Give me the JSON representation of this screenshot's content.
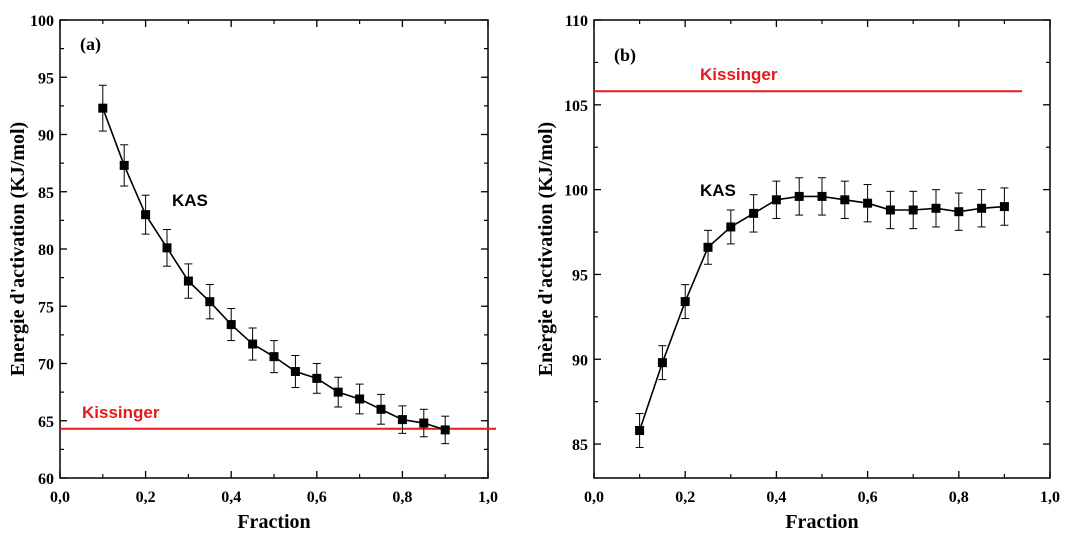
{
  "chart_data": [
    {
      "type": "line",
      "panel_label": "(a)",
      "xlabel": "Fraction",
      "ylabel": "Energie d'activation (KJ/mol)",
      "xlim": [
        0.0,
        1.0
      ],
      "ylim": [
        60,
        100
      ],
      "xticks": [
        "0,0",
        "0,2",
        "0,4",
        "0,6",
        "0,8",
        "1,0"
      ],
      "yticks": [
        "60",
        "65",
        "70",
        "75",
        "80",
        "85",
        "90",
        "95",
        "100"
      ],
      "series": [
        {
          "name": "KAS",
          "color": "#000000",
          "x": [
            0.1,
            0.15,
            0.2,
            0.25,
            0.3,
            0.35,
            0.4,
            0.45,
            0.5,
            0.55,
            0.6,
            0.65,
            0.7,
            0.75,
            0.8,
            0.85,
            0.9
          ],
          "y": [
            92.3,
            87.3,
            83.0,
            80.1,
            77.2,
            75.4,
            73.4,
            71.7,
            70.6,
            69.3,
            68.7,
            67.5,
            66.9,
            66.0,
            65.1,
            64.8,
            64.2
          ],
          "error": [
            2.0,
            1.8,
            1.7,
            1.6,
            1.5,
            1.5,
            1.4,
            1.4,
            1.4,
            1.4,
            1.3,
            1.3,
            1.3,
            1.3,
            1.2,
            1.2,
            1.2
          ]
        }
      ],
      "reference_line": {
        "name": "Kissinger",
        "y": 64.3,
        "color": "#e41a1c"
      }
    },
    {
      "type": "line",
      "panel_label": "(b)",
      "xlabel": "Fraction",
      "ylabel": "Enèrgie d'activation (KJ/mol)",
      "xlim": [
        0.0,
        1.0
      ],
      "ylim": [
        83,
        110
      ],
      "xticks": [
        "0,0",
        "0,2",
        "0,4",
        "0,6",
        "0,8",
        "1,0"
      ],
      "yticks": [
        "85",
        "90",
        "95",
        "100",
        "105",
        "110"
      ],
      "series": [
        {
          "name": "KAS",
          "color": "#000000",
          "x": [
            0.1,
            0.15,
            0.2,
            0.25,
            0.3,
            0.35,
            0.4,
            0.45,
            0.5,
            0.55,
            0.6,
            0.65,
            0.7,
            0.75,
            0.8,
            0.85,
            0.9
          ],
          "y": [
            85.8,
            89.8,
            93.4,
            96.6,
            97.8,
            98.6,
            99.4,
            99.6,
            99.6,
            99.4,
            99.2,
            98.8,
            98.8,
            98.9,
            98.7,
            98.9,
            99.0
          ],
          "error": [
            1.0,
            1.0,
            1.0,
            1.0,
            1.0,
            1.1,
            1.1,
            1.1,
            1.1,
            1.1,
            1.1,
            1.1,
            1.1,
            1.1,
            1.1,
            1.1,
            1.1
          ]
        }
      ],
      "reference_line": {
        "name": "Kissinger",
        "y": 105.8,
        "color": "#e41a1c"
      }
    }
  ]
}
